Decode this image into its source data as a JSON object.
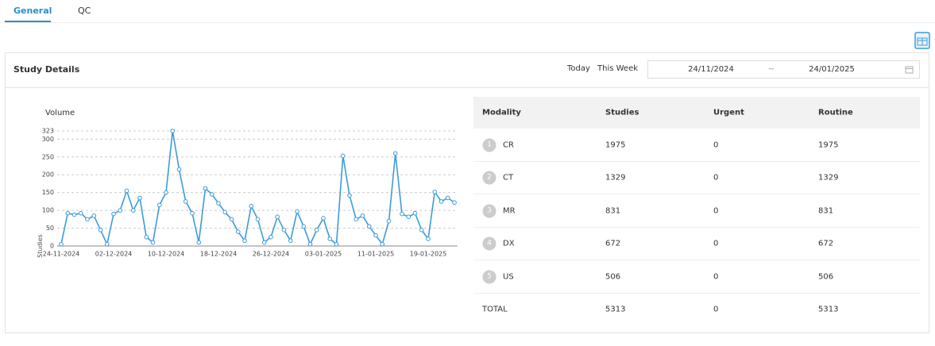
{
  "tabs": [
    "General",
    "QC"
  ],
  "panel": {
    "title": "Study Details",
    "quick_ranges": [
      "Today",
      "This Week"
    ],
    "date_from": "24/11/2024",
    "date_separator": "~",
    "date_to": "24/01/2025"
  },
  "chart_data": {
    "type": "line",
    "title": "Volume",
    "y_label": "Studies",
    "color": "#3d9bd8",
    "grid": true,
    "categories": [
      "24-11-2024",
      null,
      null,
      null,
      null,
      null,
      null,
      null,
      "02-12-2024",
      null,
      null,
      null,
      null,
      null,
      null,
      null,
      "10-12-2024",
      null,
      null,
      null,
      null,
      null,
      null,
      null,
      "18-12-2024",
      null,
      null,
      null,
      null,
      null,
      null,
      null,
      "26-12-2024",
      null,
      null,
      null,
      null,
      null,
      null,
      null,
      "03-01-2025",
      null,
      null,
      null,
      null,
      null,
      null,
      null,
      "11-01-2025",
      null,
      null,
      null,
      null,
      null,
      null,
      null,
      "19-01-2025",
      null,
      null,
      null,
      null
    ],
    "values": [
      5,
      92,
      88,
      92,
      75,
      85,
      45,
      5,
      90,
      100,
      155,
      100,
      135,
      25,
      10,
      115,
      150,
      323,
      215,
      125,
      92,
      10,
      162,
      145,
      120,
      95,
      75,
      40,
      15,
      112,
      75,
      10,
      25,
      82,
      45,
      15,
      97,
      55,
      5,
      45,
      78,
      20,
      5,
      253,
      142,
      75,
      85,
      55,
      30,
      5,
      70,
      260,
      90,
      82,
      92,
      45,
      20,
      152,
      125,
      135,
      122
    ],
    "ylim": [
      0,
      323
    ],
    "yticks": [
      0,
      50,
      100,
      150,
      200,
      250,
      300,
      323
    ]
  },
  "table": {
    "headers": [
      "Modality",
      "Studies",
      "Urgent",
      "Routine"
    ],
    "rows": [
      [
        "1",
        "CR",
        1975,
        0,
        1975
      ],
      [
        "2",
        "CT",
        1329,
        0,
        1329
      ],
      [
        "3",
        "MR",
        831,
        0,
        831
      ],
      [
        "4",
        "DX",
        672,
        0,
        672
      ],
      [
        "5",
        "US",
        506,
        0,
        506
      ]
    ],
    "total": [
      "TOTAL",
      5313,
      0,
      5313
    ]
  }
}
